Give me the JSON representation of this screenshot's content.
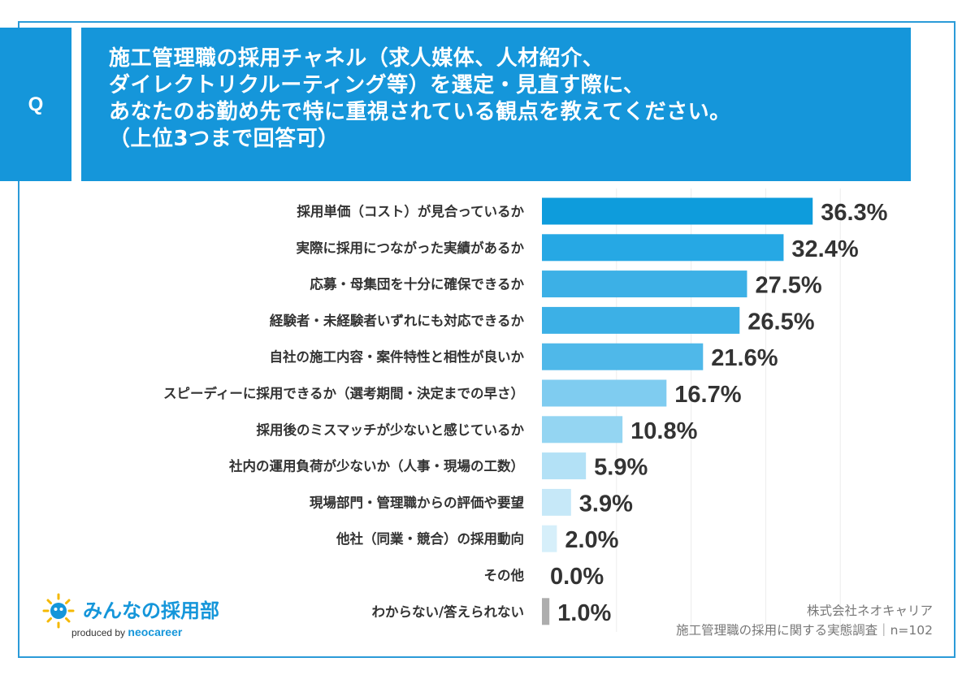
{
  "question": {
    "badge": "Q",
    "lines": [
      "施工管理職の採用チャネル（求人媒体、人材紹介、",
      "ダイレクトリクルーティング等）を選定・見直す際に、",
      "あなたのお勤め先で特に重視されている観点を教えてください。",
      "（上位3つまで回答可）"
    ]
  },
  "chart_data": {
    "type": "bar",
    "orientation": "horizontal",
    "title": "施工管理職の採用チャネル（求人媒体、人材紹介、ダイレクトリクルーティング等）を選定・見直す際に、あなたのお勤め先で特に重視されている観点を教えてください。（上位3つまで回答可）",
    "categories": [
      "採用単価（コスト）が見合っているか",
      "実際に採用につながった実績があるか",
      "応募・母集団を十分に確保できるか",
      "経験者・未経験者いずれにも対応できるか",
      "自社の施工内容・案件特性と相性が良いか",
      "スピーディーに採用できるか（選考期間・決定までの早さ）",
      "採用後のミスマッチが少ないと感じているか",
      "社内の運用負荷が少ないか（人事・現場の工数）",
      "現場部門・管理職からの評価や要望",
      "他社（同業・競合）の採用動向",
      "その他",
      "わからない/答えられない"
    ],
    "values": [
      36.3,
      32.4,
      27.5,
      26.5,
      21.6,
      16.7,
      10.8,
      5.9,
      3.9,
      2.0,
      0.0,
      1.0
    ],
    "value_labels": [
      "36.3%",
      "32.4%",
      "27.5%",
      "26.5%",
      "21.6%",
      "16.7%",
      "10.8%",
      "5.9%",
      "3.9%",
      "2.0%",
      "0.0%",
      "1.0%"
    ],
    "bar_colors": [
      "#0E9CDC",
      "#26A8E4",
      "#3CB0E6",
      "#3CB0E6",
      "#4FB8E9",
      "#7FCCF0",
      "#94D5F2",
      "#B3E1F6",
      "#C6E8F8",
      "#D6EFFA",
      "#D6EFFA",
      "#ADADAD"
    ],
    "unit": "%",
    "xlim": [
      0,
      50
    ]
  },
  "logo": {
    "name": "みんなの採用部",
    "produced_by": "produced by",
    "brand": "neocareer"
  },
  "source": {
    "company": "株式会社ネオキャリア",
    "survey": "施工管理職の採用に関する実態調査｜n=102"
  }
}
